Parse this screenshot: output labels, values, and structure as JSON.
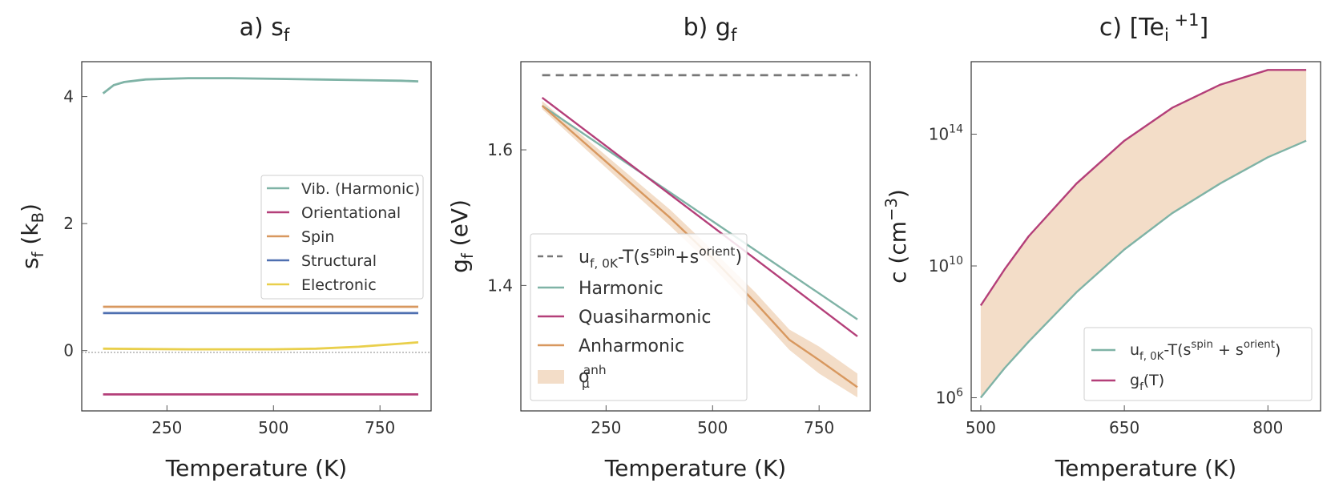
{
  "chart_data": [
    {
      "id": "a",
      "type": "line",
      "title": "a) s",
      "title_sub": "f",
      "xlabel": "Temperature (K)",
      "ylabel": "s",
      "ylabel_sub": "f",
      "ylabel_unit": " (k",
      "ylabel_unit_sub": "B",
      "ylabel_close": ")",
      "xlim": [
        50,
        870
      ],
      "ylim": [
        -0.95,
        4.55
      ],
      "xticks": [
        250,
        500,
        750
      ],
      "yticks": [
        0,
        2,
        4
      ],
      "zero_line": true,
      "legend_position": "center-right",
      "series": [
        {
          "name": "Vib. (Harmonic)",
          "color": "#7fb3a6",
          "x": [
            100,
            125,
            150,
            200,
            300,
            400,
            500,
            600,
            700,
            800,
            840
          ],
          "y": [
            4.05,
            4.18,
            4.23,
            4.27,
            4.29,
            4.29,
            4.28,
            4.27,
            4.26,
            4.25,
            4.24
          ]
        },
        {
          "name": "Orientational",
          "color": "#b43f79",
          "x": [
            100,
            840
          ],
          "y": [
            -0.69,
            -0.69
          ]
        },
        {
          "name": "Spin",
          "color": "#d8985f",
          "x": [
            100,
            840
          ],
          "y": [
            0.69,
            0.69
          ]
        },
        {
          "name": "Structural",
          "color": "#4e6fb0",
          "x": [
            100,
            840
          ],
          "y": [
            0.59,
            0.59
          ]
        },
        {
          "name": "Electronic",
          "color": "#e9cf4b",
          "x": [
            100,
            300,
            500,
            600,
            700,
            800,
            840
          ],
          "y": [
            0.03,
            0.02,
            0.02,
            0.03,
            0.06,
            0.11,
            0.13
          ]
        }
      ]
    },
    {
      "id": "b",
      "type": "line",
      "title": "b) g",
      "title_sub": "f",
      "xlabel": "Temperature (K)",
      "ylabel": "g",
      "ylabel_sub": "f",
      "ylabel_unit": " (eV)",
      "xlim": [
        50,
        870
      ],
      "ylim": [
        1.215,
        1.73
      ],
      "xticks": [
        250,
        500,
        750
      ],
      "yticks": [
        1.4,
        1.6
      ],
      "legend_position": "lower-left",
      "series": [
        {
          "name": "u",
          "name_sub": "f, 0K",
          "name_rest": "-T(s",
          "name_sup1": "spin",
          "name_mid": "+s",
          "name_sup2": "orient",
          "name_end": ")",
          "color": "#777777",
          "dashed": true,
          "x": [
            100,
            840
          ],
          "y": [
            1.71,
            1.71
          ]
        },
        {
          "name": "Harmonic",
          "color": "#7fb3a6",
          "x": [
            100,
            840
          ],
          "y": [
            1.665,
            1.35
          ]
        },
        {
          "name": "Quasiharmonic",
          "color": "#b43f79",
          "x": [
            100,
            840
          ],
          "y": [
            1.677,
            1.325
          ]
        },
        {
          "name": "Anharmonic",
          "color": "#d8985f",
          "x": [
            100,
            200,
            300,
            400,
            500,
            600,
            680,
            750,
            840
          ],
          "y": [
            1.665,
            1.61,
            1.555,
            1.5,
            1.44,
            1.375,
            1.32,
            1.29,
            1.25
          ]
        }
      ],
      "band": {
        "name": "σ",
        "name_sub": "μ",
        "name_sup": "anh",
        "color": "#f3ddc8",
        "x": [
          100,
          200,
          300,
          400,
          500,
          600,
          680,
          750,
          840
        ],
        "lower": [
          1.66,
          1.602,
          1.545,
          1.488,
          1.428,
          1.36,
          1.305,
          1.27,
          1.235
        ],
        "upper": [
          1.672,
          1.618,
          1.565,
          1.512,
          1.452,
          1.39,
          1.335,
          1.31,
          1.27
        ]
      }
    },
    {
      "id": "c",
      "type": "area",
      "title": "c) [Te",
      "title_sub": "i",
      "title_sup": " +1",
      "title_end": "]",
      "xlabel": "Temperature (K)",
      "ylabel": "c (cm",
      "ylabel_sup": "−3",
      "ylabel_end": ")",
      "y_scale": "log",
      "xlim": [
        490,
        855
      ],
      "ylog_lim": [
        5.6,
        16.2
      ],
      "xticks": [
        500,
        650,
        800
      ],
      "yticks": [
        {
          "value_log10": 6,
          "base": "10",
          "exp": "6"
        },
        {
          "value_log10": 10,
          "base": "10",
          "exp": "10"
        },
        {
          "value_log10": 14,
          "base": "10",
          "exp": "14"
        }
      ],
      "legend_position": "lower-right",
      "series": [
        {
          "name": "u",
          "name_sub": "f, 0K",
          "name_rest": "-T(s",
          "name_sup1": "spin",
          "name_mid": " + s",
          "name_sup2": "orient",
          "name_end": ")",
          "color": "#7fb3a6",
          "x": [
            500,
            525,
            550,
            600,
            650,
            700,
            750,
            800,
            840
          ],
          "y_log10": [
            6.0,
            6.9,
            7.7,
            9.2,
            10.5,
            11.6,
            12.5,
            13.3,
            13.8
          ]
        },
        {
          "name": "g",
          "name_sub": "f",
          "name_rest": "(T)",
          "color": "#b43f79",
          "x": [
            500,
            525,
            550,
            600,
            650,
            700,
            750,
            800,
            840
          ],
          "y_log10": [
            8.8,
            9.9,
            10.9,
            12.5,
            13.8,
            14.8,
            15.5,
            16.1,
            16.5
          ]
        }
      ],
      "band_color": "#f3ddc8"
    }
  ]
}
